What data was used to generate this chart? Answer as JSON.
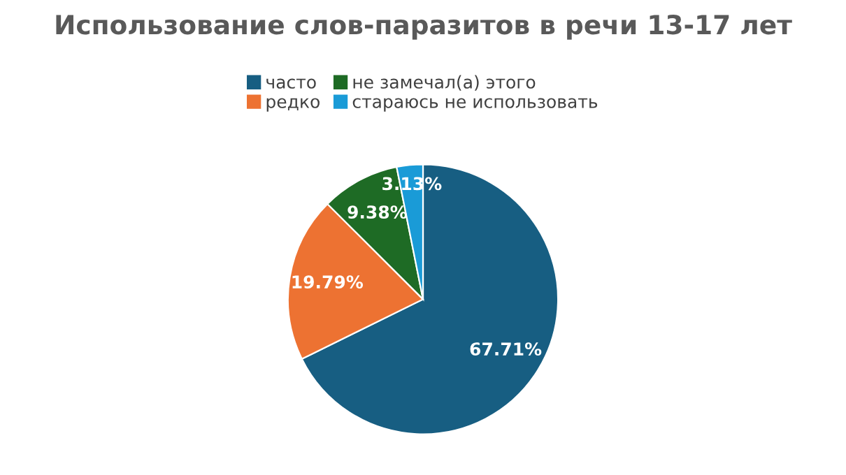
{
  "chart_data": {
    "type": "pie",
    "title": "Использование слов-паразитов в речи 13-17 лет",
    "categories": [
      "часто",
      "редко",
      "не замечал(а) этого",
      "стараюсь не использовать"
    ],
    "values": [
      67.71,
      19.79,
      9.38,
      3.13
    ],
    "value_labels": [
      "67.71%",
      "19.79%",
      "9.38%",
      "3.13%"
    ],
    "colors": [
      "#175e82",
      "#ed7232",
      "#1e6b25",
      "#1a9bd7"
    ],
    "legend": "top"
  }
}
